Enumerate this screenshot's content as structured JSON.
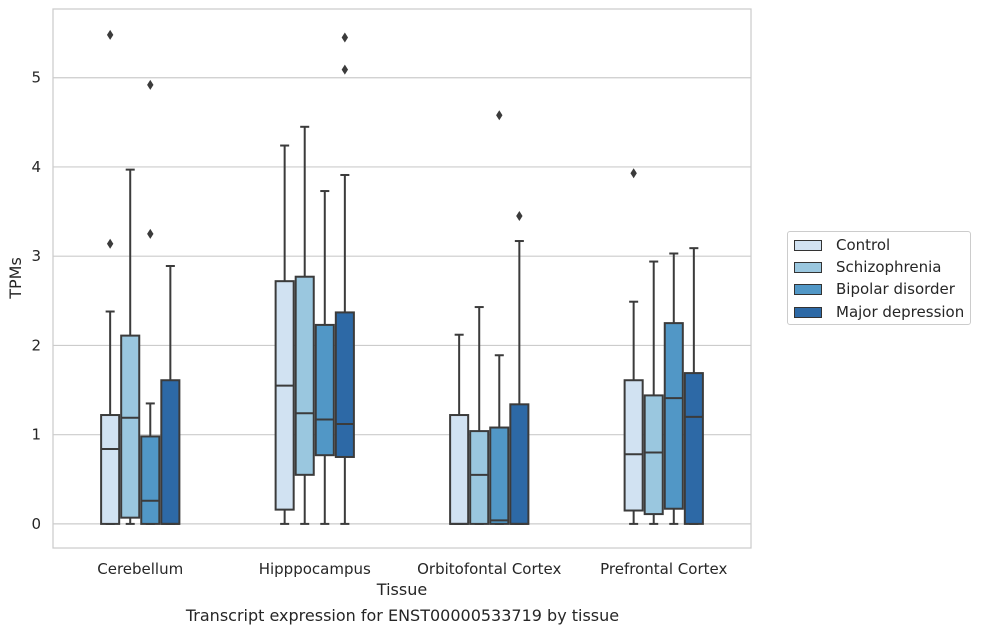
{
  "caption": "Transcript expression for ENST00000533719 by tissue",
  "chart_data": {
    "type": "boxplot",
    "xlabel": "Tissue",
    "ylabel": "TPMs",
    "ylim": [
      -0.27,
      5.77
    ],
    "yticks": [
      0,
      1,
      2,
      3,
      4,
      5
    ],
    "grid": "horizontal",
    "legend_position": "right",
    "categories": [
      "Cerebellum",
      "Hipppocampus",
      "Orbitofontal Cortex",
      "Prefrontal Cortex"
    ],
    "series": [
      {
        "name": "Control",
        "color": "#d1e2f2",
        "boxes": [
          {
            "whisker_low": 0,
            "q1": 0,
            "median": 0.84,
            "q3": 1.22,
            "whisker_high": 2.38,
            "outliers": [
              3.14,
              5.48
            ]
          },
          {
            "whisker_low": 0,
            "q1": 0.16,
            "median": 1.55,
            "q3": 2.72,
            "whisker_high": 4.24,
            "outliers": []
          },
          {
            "whisker_low": 0,
            "q1": 0,
            "median": 0,
            "q3": 1.22,
            "whisker_high": 2.12,
            "outliers": []
          },
          {
            "whisker_low": 0,
            "q1": 0.15,
            "median": 0.78,
            "q3": 1.61,
            "whisker_high": 2.49,
            "outliers": [
              3.93
            ]
          }
        ]
      },
      {
        "name": "Schizophrenia",
        "color": "#9ac7df",
        "boxes": [
          {
            "whisker_low": 0,
            "q1": 0.07,
            "median": 1.19,
            "q3": 2.11,
            "whisker_high": 3.97,
            "outliers": []
          },
          {
            "whisker_low": 0,
            "q1": 0.55,
            "median": 1.24,
            "q3": 2.77,
            "whisker_high": 4.45,
            "outliers": []
          },
          {
            "whisker_low": 0,
            "q1": 0,
            "median": 0.55,
            "q3": 1.04,
            "whisker_high": 2.43,
            "outliers": []
          },
          {
            "whisker_low": 0,
            "q1": 0.11,
            "median": 0.8,
            "q3": 1.44,
            "whisker_high": 2.94,
            "outliers": []
          }
        ]
      },
      {
        "name": "Bipolar disorder",
        "color": "#5197c6",
        "boxes": [
          {
            "whisker_low": 0,
            "q1": 0,
            "median": 0.26,
            "q3": 0.98,
            "whisker_high": 1.35,
            "outliers": [
              3.25,
              4.92
            ]
          },
          {
            "whisker_low": 0,
            "q1": 0.77,
            "median": 1.17,
            "q3": 2.23,
            "whisker_high": 3.73,
            "outliers": []
          },
          {
            "whisker_low": 0,
            "q1": 0,
            "median": 0.04,
            "q3": 1.08,
            "whisker_high": 1.89,
            "outliers": [
              4.58
            ]
          },
          {
            "whisker_low": 0,
            "q1": 0.17,
            "median": 1.41,
            "q3": 2.25,
            "whisker_high": 3.03,
            "outliers": []
          }
        ]
      },
      {
        "name": "Major depression",
        "color": "#2d69a6",
        "boxes": [
          {
            "whisker_low": 0,
            "q1": 0,
            "median": 0,
            "q3": 1.61,
            "whisker_high": 2.89,
            "outliers": []
          },
          {
            "whisker_low": 0,
            "q1": 0.75,
            "median": 1.12,
            "q3": 2.37,
            "whisker_high": 3.91,
            "outliers": [
              5.09,
              5.45
            ]
          },
          {
            "whisker_low": 0,
            "q1": 0,
            "median": 0,
            "q3": 1.34,
            "whisker_high": 3.17,
            "outliers": [
              3.45
            ]
          },
          {
            "whisker_low": 0,
            "q1": 0,
            "median": 1.2,
            "q3": 1.69,
            "whisker_high": 3.09,
            "outliers": []
          }
        ]
      }
    ]
  }
}
